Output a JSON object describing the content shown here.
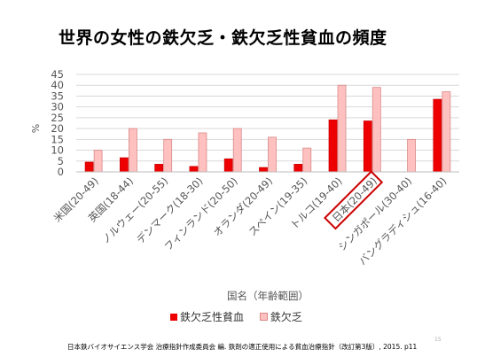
{
  "slide": {
    "title": "世界の女性の鉄欠乏・鉄欠乏性貧血の頻度",
    "source": "日本鉄バイオサイエンス学会 治療指針作成委員会 編. 鉄剤の適正使用による貧血治療指針（改訂第3版）, 2015.  p11",
    "page_number": "15"
  },
  "chart_data": {
    "type": "bar",
    "title": "",
    "xlabel": "国名（年齢範囲）",
    "ylabel": "%",
    "ylim": [
      0,
      45
    ],
    "yticks": [
      "0",
      "5",
      "10",
      "15",
      "20",
      "25",
      "30",
      "35",
      "40",
      "45"
    ],
    "grid": true,
    "legend_position": "bottom",
    "categories": [
      "米国(20-49)",
      "英国(18-44)",
      "ノルウェー(20-55)",
      "デンマーク(18-30)",
      "フィンランド(20-50)",
      "オランダ(20-49)",
      "スペイン(19-35)",
      "トルコ(19-40)",
      "日本(20-49)",
      "シンガポール(30-40)",
      "バングラディシュ(16-40)"
    ],
    "highlighted_category": "日本(20-49)",
    "series": [
      {
        "name": "鉄欠乏性貧血",
        "color": "#ee0000",
        "values": [
          4.5,
          6.5,
          3.5,
          2.5,
          6,
          2,
          3.5,
          24,
          23.5,
          null,
          33.5
        ]
      },
      {
        "name": "鉄欠乏",
        "color": "#ffc0c0",
        "values": [
          10,
          20,
          15,
          18,
          20,
          16,
          11,
          40,
          39,
          15,
          37
        ]
      }
    ]
  }
}
